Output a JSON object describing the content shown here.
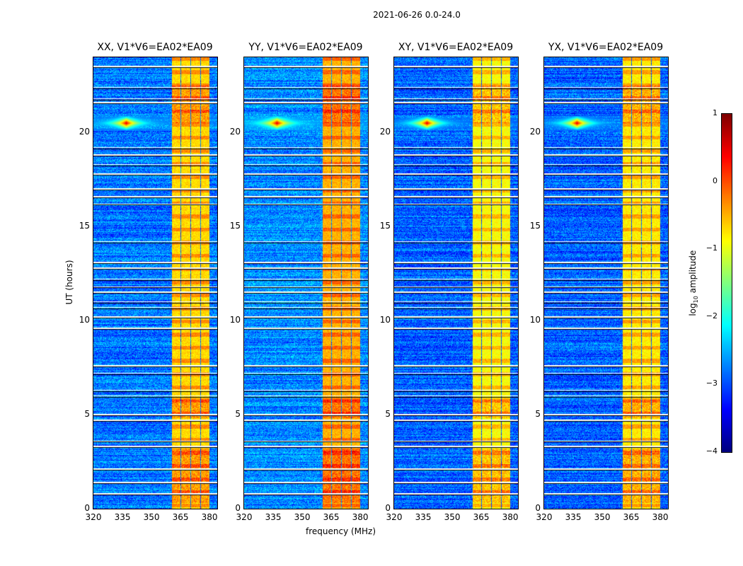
{
  "chart_data": {
    "type": "heatmap",
    "title": "2021-06-26 0.0-24.0",
    "xlabel": "frequency (MHz)",
    "ylabel": "UT (hours)",
    "xlim": [
      320,
      384
    ],
    "ylim": [
      0,
      24
    ],
    "xticks": [
      "320",
      "335",
      "350",
      "365",
      "380"
    ],
    "yticks": [
      "0",
      "5",
      "10",
      "15",
      "20"
    ],
    "xtick_values": [
      320,
      335,
      350,
      365,
      380
    ],
    "ytick_values": [
      0,
      5,
      10,
      15,
      20
    ],
    "colorbar": {
      "label_main": "log",
      "label_sub": "10",
      "label_rest": " amplitude",
      "range": [
        -4,
        1
      ],
      "ticks": [
        "1",
        "0",
        "−1",
        "−2",
        "−3",
        "−4"
      ],
      "tick_values": [
        1,
        0,
        -1,
        -2,
        -3,
        -4
      ],
      "colormap": "jet"
    },
    "panels": [
      {
        "title": "XX, V1*V6=EA02*EA09",
        "background": -2.8,
        "band_level": -0.7
      },
      {
        "title": "YY, V1*V6=EA02*EA09",
        "background": -2.7,
        "band_level": -0.5
      },
      {
        "title": "XY, V1*V6=EA02*EA09",
        "background": -2.9,
        "band_level": -0.9
      },
      {
        "title": "YX, V1*V6=EA02*EA09",
        "background": -2.9,
        "band_level": -0.8
      }
    ],
    "rfi_bands_mhz": [
      [
        360.5,
        364.8
      ],
      [
        365.2,
        370.0
      ],
      [
        370.5,
        375.2
      ],
      [
        375.7,
        380.0
      ]
    ],
    "burst": {
      "time_h": 20.5,
      "center_mhz": 337,
      "level": 0.6
    },
    "strong_rfi_hours": [
      [
        20.5,
        22.5
      ],
      [
        4.8,
        5.8
      ],
      [
        0.3,
        3.2
      ]
    ],
    "flagged_hours": [
      23.5,
      22.4,
      21.8,
      21.6,
      19.2,
      18.8,
      18.3,
      17.8,
      17.0,
      16.6,
      16.2,
      14.2,
      13.1,
      12.8,
      12.2,
      11.8,
      11.5,
      11.0,
      10.7,
      10.2,
      9.6,
      7.6,
      7.2,
      6.3,
      6.0,
      5.0,
      4.7,
      3.6,
      3.3,
      2.1,
      1.4,
      0.8
    ]
  }
}
